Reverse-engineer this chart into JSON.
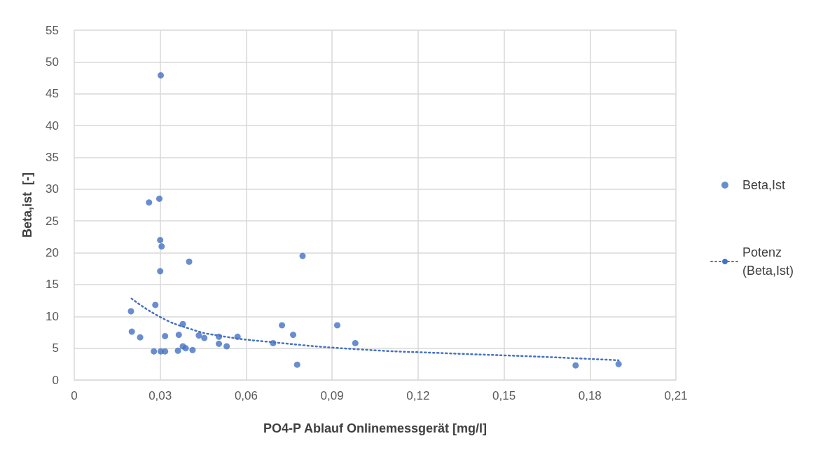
{
  "chart_data": {
    "type": "scatter",
    "xlabel": "PO4-P Ablauf Onlinemessgerät [mg/l]",
    "ylabel": "Beta,ist  [-]",
    "xlim": [
      0,
      0.21
    ],
    "xticks": [
      0,
      {
        "value": 0.03,
        "label": "0,03"
      },
      {
        "value": 0.06,
        "label": "0,06"
      },
      {
        "value": 0.09,
        "label": "0,09"
      },
      {
        "value": 0.12,
        "label": "0,12"
      },
      {
        "value": 0.15,
        "label": "0,15"
      },
      {
        "value": 0.18,
        "label": "0,18"
      },
      {
        "value": 0.21,
        "label": "0,21"
      }
    ],
    "ylim": [
      0,
      55
    ],
    "yticks": [
      0,
      5,
      10,
      15,
      20,
      25,
      30,
      35,
      40,
      45,
      50,
      55
    ],
    "grid": true,
    "legend": "right",
    "series": [
      {
        "name": "Beta,Ist",
        "marker": "circle",
        "color": "#4472c4",
        "x": [
          0.0198,
          0.0201,
          0.023,
          0.0261,
          0.0278,
          0.0283,
          0.0297,
          0.03,
          0.03,
          0.0302,
          0.0302,
          0.0305,
          0.0317,
          0.0317,
          0.0362,
          0.0365,
          0.0379,
          0.0379,
          0.0389,
          0.0401,
          0.0413,
          0.0435,
          0.0454,
          0.0505,
          0.0505,
          0.0532,
          0.057,
          0.0694,
          0.0725,
          0.0764,
          0.0778,
          0.0797,
          0.0918,
          0.0981,
          0.175,
          0.19
        ],
        "values": [
          10.8,
          7.6,
          6.7,
          27.9,
          4.5,
          11.8,
          28.5,
          22.0,
          17.1,
          47.9,
          4.5,
          21.0,
          6.9,
          4.5,
          4.6,
          7.1,
          8.8,
          5.3,
          5.0,
          18.6,
          4.7,
          7.0,
          6.6,
          5.7,
          6.8,
          5.3,
          6.8,
          5.8,
          8.6,
          7.1,
          2.4,
          19.5,
          8.6,
          5.8,
          2.3,
          2.5
        ]
      },
      {
        "name": "Potenz (Beta,Ist)",
        "type": "line",
        "marker": "none",
        "line_style": "dotted",
        "color": "#4472c4",
        "x": [
          0.02,
          0.03,
          0.04,
          0.05,
          0.07,
          0.1,
          0.13,
          0.16,
          0.19
        ],
        "values": [
          12.8,
          9.9,
          8.1,
          7.0,
          5.9,
          4.8,
          4.2,
          3.7,
          3.1
        ]
      }
    ]
  }
}
